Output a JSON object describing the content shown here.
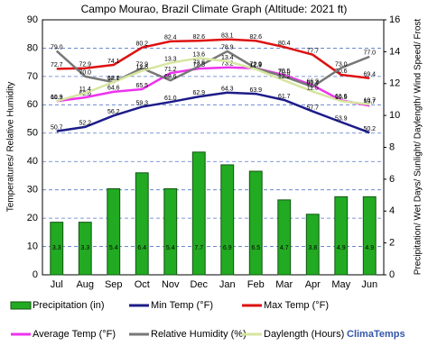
{
  "chart_data": {
    "type": "combo",
    "title": "Campo Mourao, Brazil Climate Graph (Altitude: 2021 ft)",
    "y_label": "Temperatures/ Relative Humidity",
    "y2_label": "Precipitation/ Wet Days/ Sunlight/ Daylength/ Wind Speed/ Frost",
    "brand": "ClimaTemps",
    "categories": [
      "Jul",
      "Aug",
      "Sep",
      "Oct",
      "Nov",
      "Dec",
      "Jan",
      "Feb",
      "Mar",
      "Apr",
      "May",
      "Jun"
    ],
    "ylim": [
      0,
      90
    ],
    "yticks": [
      0,
      10,
      20,
      30,
      40,
      50,
      60,
      70,
      80,
      90
    ],
    "y2lim": [
      0,
      16
    ],
    "y2ticks": [
      0,
      2,
      4,
      6,
      8,
      10,
      12,
      14,
      16
    ],
    "grid": true,
    "series": [
      {
        "name": "Precipitation (in)",
        "kind": "bar",
        "axis": "y2",
        "color": "#22aa22",
        "values": [
          3.3,
          3.3,
          5.4,
          6.4,
          5.4,
          7.7,
          6.9,
          6.5,
          4.7,
          3.8,
          4.9,
          4.9
        ]
      },
      {
        "name": "Min Temp (°F)",
        "kind": "line",
        "color": "#1c1c8a",
        "values": [
          50.7,
          52.2,
          56.2,
          59.3,
          61.0,
          62.9,
          64.3,
          63.9,
          61.7,
          57.7,
          53.9,
          50.2
        ],
        "value_labels": [
          "50.7",
          "52.2",
          "56.2",
          "59.3",
          "61.0",
          "62.9",
          "64.3",
          "63.9",
          "61.7",
          "57.7",
          "53.9",
          "50.2"
        ]
      },
      {
        "name": "Max Temp (°F)",
        "kind": "line",
        "color": "#dd1111",
        "values": [
          72.7,
          72.9,
          74.1,
          80.2,
          82.4,
          82.6,
          83.1,
          82.6,
          80.4,
          77.7,
          70.6,
          69.4
        ]
      },
      {
        "name": "Average Temp (°F)",
        "kind": "line",
        "color": "#ee33ee",
        "values": [
          61.3,
          62.6,
          64.6,
          65.5,
          71.2,
          72.8,
          73.2,
          72.9,
          70.5,
          66.9,
          61.6,
          59.7
        ]
      },
      {
        "name": "Relative Humidity (%)",
        "kind": "line",
        "color": "#777777",
        "values": [
          79.0,
          70.0,
          68.0,
          72.9,
          68.6,
          73.6,
          78.9,
          72.9,
          70.0,
          66.4,
          73.0,
          77.0
        ],
        "value_labels": [
          "79.0",
          "70.0",
          "68.0",
          "72.9",
          "68.6",
          "73.6",
          "78.9",
          "72.9",
          "70.0",
          "66.4",
          "73.0",
          "77.0"
        ]
      },
      {
        "name": "Daylength (Hours)",
        "kind": "line",
        "axis": "y2",
        "color": "#d6e6a0",
        "values": [
          10.9,
          11.4,
          12.1,
          12.8,
          13.3,
          13.6,
          13.4,
          12.9,
          12.2,
          11.5,
          10.9,
          10.7
        ]
      }
    ]
  }
}
